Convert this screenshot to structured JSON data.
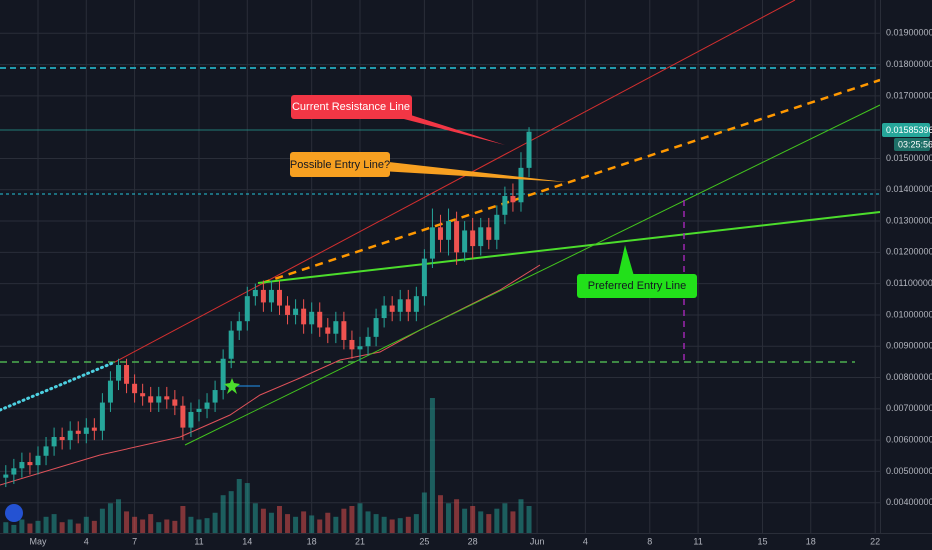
{
  "chart_data": {
    "type": "candlestick",
    "x": [
      -2,
      -1.5,
      -1,
      -0.5,
      0,
      0.5,
      1,
      1.5,
      2,
      2.5,
      3,
      3.5,
      4,
      4.5,
      5,
      5.5,
      6,
      6.5,
      7,
      7.5,
      8,
      8.5,
      9,
      9.5,
      10,
      10.5,
      11,
      11.5,
      12,
      12.5,
      13,
      13.5,
      14,
      14.5,
      15,
      15.5,
      16,
      16.5,
      17,
      17.5,
      18,
      18.5,
      19,
      19.5,
      20,
      20.5,
      21,
      21.5,
      22,
      22.5,
      23,
      23.5,
      24,
      24.5,
      25,
      25.5,
      26,
      26.5,
      27,
      27.5,
      28,
      28.5,
      29,
      29.5,
      30,
      30.5
    ],
    "open": [
      0.0048,
      0.0049,
      0.0051,
      0.0053,
      0.0052,
      0.0055,
      0.0058,
      0.0061,
      0.006,
      0.0063,
      0.0062,
      0.0064,
      0.0063,
      0.0072,
      0.0079,
      0.0084,
      0.0078,
      0.0075,
      0.0074,
      0.0072,
      0.0074,
      0.0073,
      0.0071,
      0.0064,
      0.0069,
      0.007,
      0.0072,
      0.0076,
      0.0086,
      0.0095,
      0.0098,
      0.0106,
      0.0108,
      0.0104,
      0.0108,
      0.0103,
      0.01,
      0.0102,
      0.0097,
      0.0101,
      0.0096,
      0.0094,
      0.0098,
      0.0092,
      0.0089,
      0.009,
      0.0093,
      0.0099,
      0.0103,
      0.0101,
      0.0105,
      0.0101,
      0.0106,
      0.0118,
      0.0128,
      0.0124,
      0.013,
      0.012,
      0.0127,
      0.0122,
      0.0128,
      0.0124,
      0.0132,
      0.0138,
      0.0136,
      0.0147
    ],
    "high": [
      0.0052,
      0.0054,
      0.0056,
      0.0056,
      0.0058,
      0.0061,
      0.0064,
      0.0064,
      0.0066,
      0.0066,
      0.0067,
      0.0067,
      0.0075,
      0.0082,
      0.0086,
      0.0086,
      0.0081,
      0.0078,
      0.0077,
      0.0077,
      0.0077,
      0.0076,
      0.0074,
      0.0072,
      0.0073,
      0.0075,
      0.0079,
      0.0089,
      0.0098,
      0.0101,
      0.0109,
      0.011,
      0.0111,
      0.0111,
      0.0111,
      0.0106,
      0.0105,
      0.0105,
      0.0104,
      0.0104,
      0.0099,
      0.0101,
      0.0101,
      0.0095,
      0.0093,
      0.0096,
      0.0102,
      0.0106,
      0.0106,
      0.0108,
      0.0108,
      0.0109,
      0.0121,
      0.0134,
      0.0132,
      0.0134,
      0.0133,
      0.013,
      0.0131,
      0.0131,
      0.0131,
      0.0135,
      0.0141,
      0.0142,
      0.0152,
      0.016
    ],
    "low": [
      0.0045,
      0.0046,
      0.0048,
      0.0049,
      0.0049,
      0.0052,
      0.0055,
      0.0057,
      0.0057,
      0.0059,
      0.0059,
      0.006,
      0.006,
      0.0069,
      0.0076,
      0.0075,
      0.0072,
      0.0071,
      0.0069,
      0.0069,
      0.007,
      0.0068,
      0.006,
      0.0061,
      0.0066,
      0.0067,
      0.0069,
      0.0073,
      0.0083,
      0.0092,
      0.0095,
      0.0103,
      0.0101,
      0.0101,
      0.01,
      0.0097,
      0.0097,
      0.0094,
      0.0094,
      0.0093,
      0.0091,
      0.0091,
      0.0089,
      0.0086,
      0.0085,
      0.0087,
      0.009,
      0.0096,
      0.0098,
      0.0098,
      0.0098,
      0.0098,
      0.0103,
      0.0115,
      0.012,
      0.0119,
      0.0116,
      0.0117,
      0.0118,
      0.0119,
      0.0121,
      0.0121,
      0.0129,
      0.0133,
      0.0133,
      0.0144
    ],
    "close": [
      0.0049,
      0.0051,
      0.0053,
      0.0052,
      0.0055,
      0.0058,
      0.0061,
      0.006,
      0.0063,
      0.0062,
      0.0064,
      0.0063,
      0.0072,
      0.0079,
      0.0084,
      0.0078,
      0.0075,
      0.0074,
      0.0072,
      0.0074,
      0.0073,
      0.0071,
      0.0064,
      0.0069,
      0.007,
      0.0072,
      0.0076,
      0.0086,
      0.0095,
      0.0098,
      0.0106,
      0.0108,
      0.0104,
      0.0108,
      0.0103,
      0.01,
      0.0102,
      0.0097,
      0.0101,
      0.0096,
      0.0094,
      0.0098,
      0.0092,
      0.0089,
      0.009,
      0.0093,
      0.0099,
      0.0103,
      0.0101,
      0.0105,
      0.0101,
      0.0106,
      0.0118,
      0.0128,
      0.0124,
      0.013,
      0.012,
      0.0127,
      0.0122,
      0.0128,
      0.0124,
      0.0132,
      0.0138,
      0.0136,
      0.0147,
      0.01585396
    ],
    "volume": [
      8,
      6,
      10,
      7,
      9,
      12,
      14,
      8,
      10,
      7,
      12,
      9,
      18,
      22,
      25,
      16,
      12,
      10,
      14,
      8,
      10,
      9,
      20,
      12,
      10,
      11,
      15,
      28,
      31,
      40,
      37,
      22,
      18,
      15,
      20,
      14,
      12,
      16,
      13,
      10,
      15,
      12,
      18,
      20,
      22,
      16,
      14,
      12,
      10,
      11,
      12,
      14,
      30,
      100,
      28,
      22,
      25,
      18,
      20,
      16,
      14,
      18,
      22,
      16,
      25,
      20
    ],
    "up_color": "#26a69a",
    "down_color": "#ef5350",
    "xlim": [
      -2.36,
      52.3
    ],
    "ylim": [
      0.003,
      0.02
    ],
    "xticks": [
      {
        "value": 0,
        "label": "May"
      },
      {
        "value": 3,
        "label": "4"
      },
      {
        "value": 6,
        "label": "7"
      },
      {
        "value": 10,
        "label": "11"
      },
      {
        "value": 13,
        "label": "14"
      },
      {
        "value": 17,
        "label": "18"
      },
      {
        "value": 20,
        "label": "21"
      },
      {
        "value": 24,
        "label": "25"
      },
      {
        "value": 27,
        "label": "28"
      },
      {
        "value": 31,
        "label": "Jun"
      },
      {
        "value": 34,
        "label": "4"
      },
      {
        "value": 38,
        "label": "8"
      },
      {
        "value": 41,
        "label": "11"
      },
      {
        "value": 45,
        "label": "15"
      },
      {
        "value": 48,
        "label": "18"
      },
      {
        "value": 52,
        "label": "22"
      }
    ],
    "yticks": [
      {
        "value": 0.004,
        "label": "0.00400000"
      },
      {
        "value": 0.005,
        "label": "0.00500000"
      },
      {
        "value": 0.006,
        "label": "0.00600000"
      },
      {
        "value": 0.007,
        "label": "0.00700000"
      },
      {
        "value": 0.008,
        "label": "0.00800000"
      },
      {
        "value": 0.009,
        "label": "0.00900000"
      },
      {
        "value": 0.01,
        "label": "0.01000000"
      },
      {
        "value": 0.011,
        "label": "0.01100000"
      },
      {
        "value": 0.012,
        "label": "0.01200000"
      },
      {
        "value": 0.013,
        "label": "0.01300000"
      },
      {
        "value": 0.014,
        "label": "0.01400000"
      },
      {
        "value": 0.015,
        "label": "0.01500000"
      },
      {
        "value": 0.017,
        "label": "0.01700000"
      },
      {
        "value": 0.018,
        "label": "0.01800000"
      },
      {
        "value": 0.019,
        "label": "0.01900000"
      }
    ],
    "grid": true,
    "last_price": 0.01585396,
    "countdown": "03:25:56",
    "annotations": [
      "Current Resistance Line",
      "Possible Entry Line?",
      "Preferred Entry Line"
    ]
  }
}
